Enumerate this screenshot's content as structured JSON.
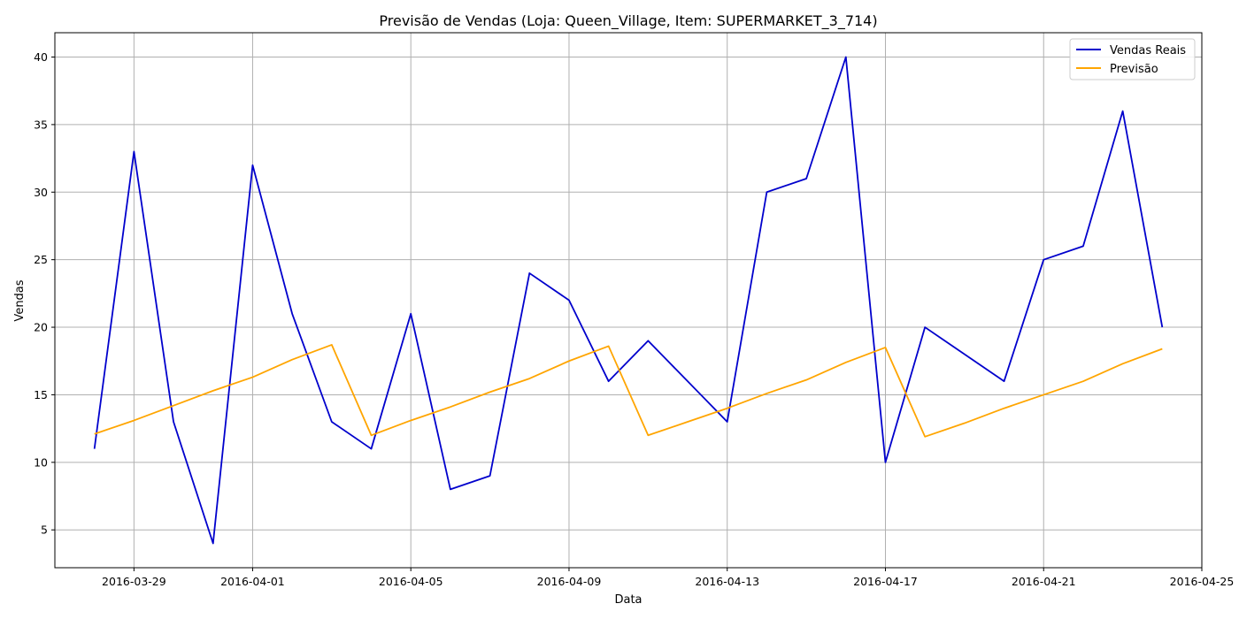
{
  "chart_data": {
    "type": "line",
    "title": "Previsão de Vendas (Loja: Queen_Village, Item: SUPERMARKET_3_714)",
    "xlabel": "Data",
    "ylabel": "Vendas",
    "xlim": [
      "2016-03-27",
      "2016-04-25"
    ],
    "ylim": [
      2.2,
      41.8
    ],
    "grid": true,
    "legend_position": "top-right",
    "x_ticks": [
      "2016-03-29",
      "2016-04-01",
      "2016-04-05",
      "2016-04-09",
      "2016-04-13",
      "2016-04-17",
      "2016-04-21",
      "2016-04-25"
    ],
    "y_ticks": [
      5,
      10,
      15,
      20,
      25,
      30,
      35,
      40
    ],
    "series": [
      {
        "name": "Vendas Reais",
        "color": "#0000cc",
        "points": [
          [
            "2016-03-28",
            11
          ],
          [
            "2016-03-29",
            33
          ],
          [
            "2016-03-30",
            13
          ],
          [
            "2016-03-31",
            4
          ],
          [
            "2016-04-01",
            32
          ],
          [
            "2016-04-02",
            21
          ],
          [
            "2016-04-03",
            13
          ],
          [
            "2016-04-04",
            11
          ],
          [
            "2016-04-05",
            21
          ],
          [
            "2016-04-06",
            8
          ],
          [
            "2016-04-07",
            9
          ],
          [
            "2016-04-08",
            24
          ],
          [
            "2016-04-09",
            22
          ],
          [
            "2016-04-10",
            16
          ],
          [
            "2016-04-11",
            19
          ],
          [
            "2016-04-13",
            13
          ],
          [
            "2016-04-14",
            30
          ],
          [
            "2016-04-15",
            31
          ],
          [
            "2016-04-16",
            40
          ],
          [
            "2016-04-17",
            10
          ],
          [
            "2016-04-18",
            20
          ],
          [
            "2016-04-20",
            16
          ],
          [
            "2016-04-21",
            25
          ],
          [
            "2016-04-22",
            26
          ],
          [
            "2016-04-23",
            36
          ],
          [
            "2016-04-24",
            20
          ]
        ]
      },
      {
        "name": "Previsão",
        "color": "#ffa500",
        "points": [
          [
            "2016-03-28",
            12.1
          ],
          [
            "2016-03-29",
            13.1
          ],
          [
            "2016-03-30",
            14.2
          ],
          [
            "2016-03-31",
            15.3
          ],
          [
            "2016-04-01",
            16.3
          ],
          [
            "2016-04-02",
            17.6
          ],
          [
            "2016-04-03",
            18.7
          ],
          [
            "2016-04-04",
            12.0
          ],
          [
            "2016-04-05",
            13.1
          ],
          [
            "2016-04-06",
            14.1
          ],
          [
            "2016-04-07",
            15.2
          ],
          [
            "2016-04-08",
            16.2
          ],
          [
            "2016-04-09",
            17.5
          ],
          [
            "2016-04-10",
            18.6
          ],
          [
            "2016-04-11",
            12.0
          ],
          [
            "2016-04-12",
            13.0
          ],
          [
            "2016-04-13",
            14.0
          ],
          [
            "2016-04-14",
            15.1
          ],
          [
            "2016-04-15",
            16.1
          ],
          [
            "2016-04-16",
            17.4
          ],
          [
            "2016-04-17",
            18.5
          ],
          [
            "2016-04-18",
            11.9
          ],
          [
            "2016-04-19",
            12.9
          ],
          [
            "2016-04-20",
            14.0
          ],
          [
            "2016-04-21",
            15.0
          ],
          [
            "2016-04-22",
            16.0
          ],
          [
            "2016-04-23",
            17.3
          ],
          [
            "2016-04-24",
            18.4
          ]
        ]
      }
    ]
  }
}
